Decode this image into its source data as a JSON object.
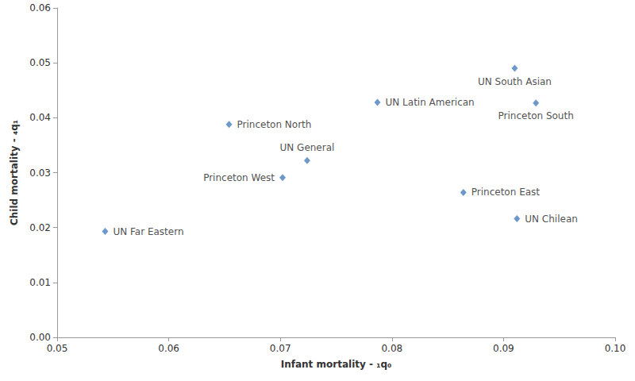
{
  "chart_data": {
    "type": "scatter",
    "x_label": "Infant mortality - ₁q₀",
    "y_label": "Child mortality - ₄q₁",
    "series": [
      {
        "color": "#4a7ebb",
        "marker": "diamond",
        "points": [
          {
            "label": "UN Far Eastern",
            "x": 0.0543,
            "y": 0.0193
          },
          {
            "label": "Princeton North",
            "x": 0.0654,
            "y": 0.0388
          },
          {
            "label": "Princeton West",
            "x": 0.0702,
            "y": 0.0291
          },
          {
            "label": "UN General",
            "x": 0.0724,
            "y": 0.0322
          },
          {
            "label": "UN Latin American",
            "x": 0.0787,
            "y": 0.0428
          },
          {
            "label": "Princeton East",
            "x": 0.0864,
            "y": 0.0264
          },
          {
            "label": "UN South Asian",
            "x": 0.091,
            "y": 0.049
          },
          {
            "label": "Princeton South",
            "x": 0.0929,
            "y": 0.0427
          },
          {
            "label": "UN Chilean",
            "x": 0.0912,
            "y": 0.0216
          }
        ]
      }
    ],
    "xlim": [
      0.05,
      0.1
    ],
    "xticks": [
      0.05,
      0.06,
      0.07,
      0.08,
      0.09,
      {
        "value": 0.1,
        "label": "0.10"
      }
    ],
    "ylim": [
      0,
      0.06
    ],
    "yticks": [
      {
        "value": 0,
        "label": "0.00"
      },
      0.01,
      0.02,
      0.03,
      0.04,
      0.05,
      0.06
    ],
    "grid": false
  }
}
